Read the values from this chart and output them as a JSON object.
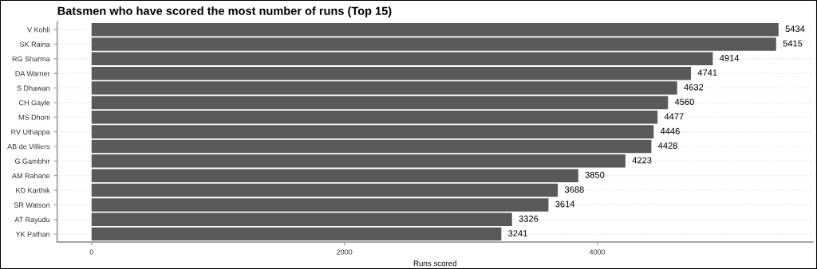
{
  "chart_data": {
    "type": "bar",
    "orientation": "horizontal",
    "title": "Batsmen who have scored the most number of runs (Top 15)",
    "xlabel": "Runs scored",
    "categories": [
      "V Kohli",
      "SK Raina",
      "RG Sharma",
      "DA Warner",
      "S Dhawan",
      "CH Gayle",
      "MS Dhoni",
      "RV Uthappa",
      "AB de Villiers",
      "G Gambhir",
      "AM Rahane",
      "KD Karthik",
      "SR Watson",
      "AT Rayudu",
      "YK Pathan"
    ],
    "values": [
      5434,
      5415,
      4914,
      4741,
      4632,
      4560,
      4477,
      4446,
      4428,
      4223,
      3850,
      3688,
      3614,
      3326,
      3241
    ],
    "color": "#595959",
    "data_labels": true,
    "xlim": [
      -272,
      5706
    ],
    "xticks": [
      0,
      2000,
      4000
    ],
    "grid": "y"
  }
}
